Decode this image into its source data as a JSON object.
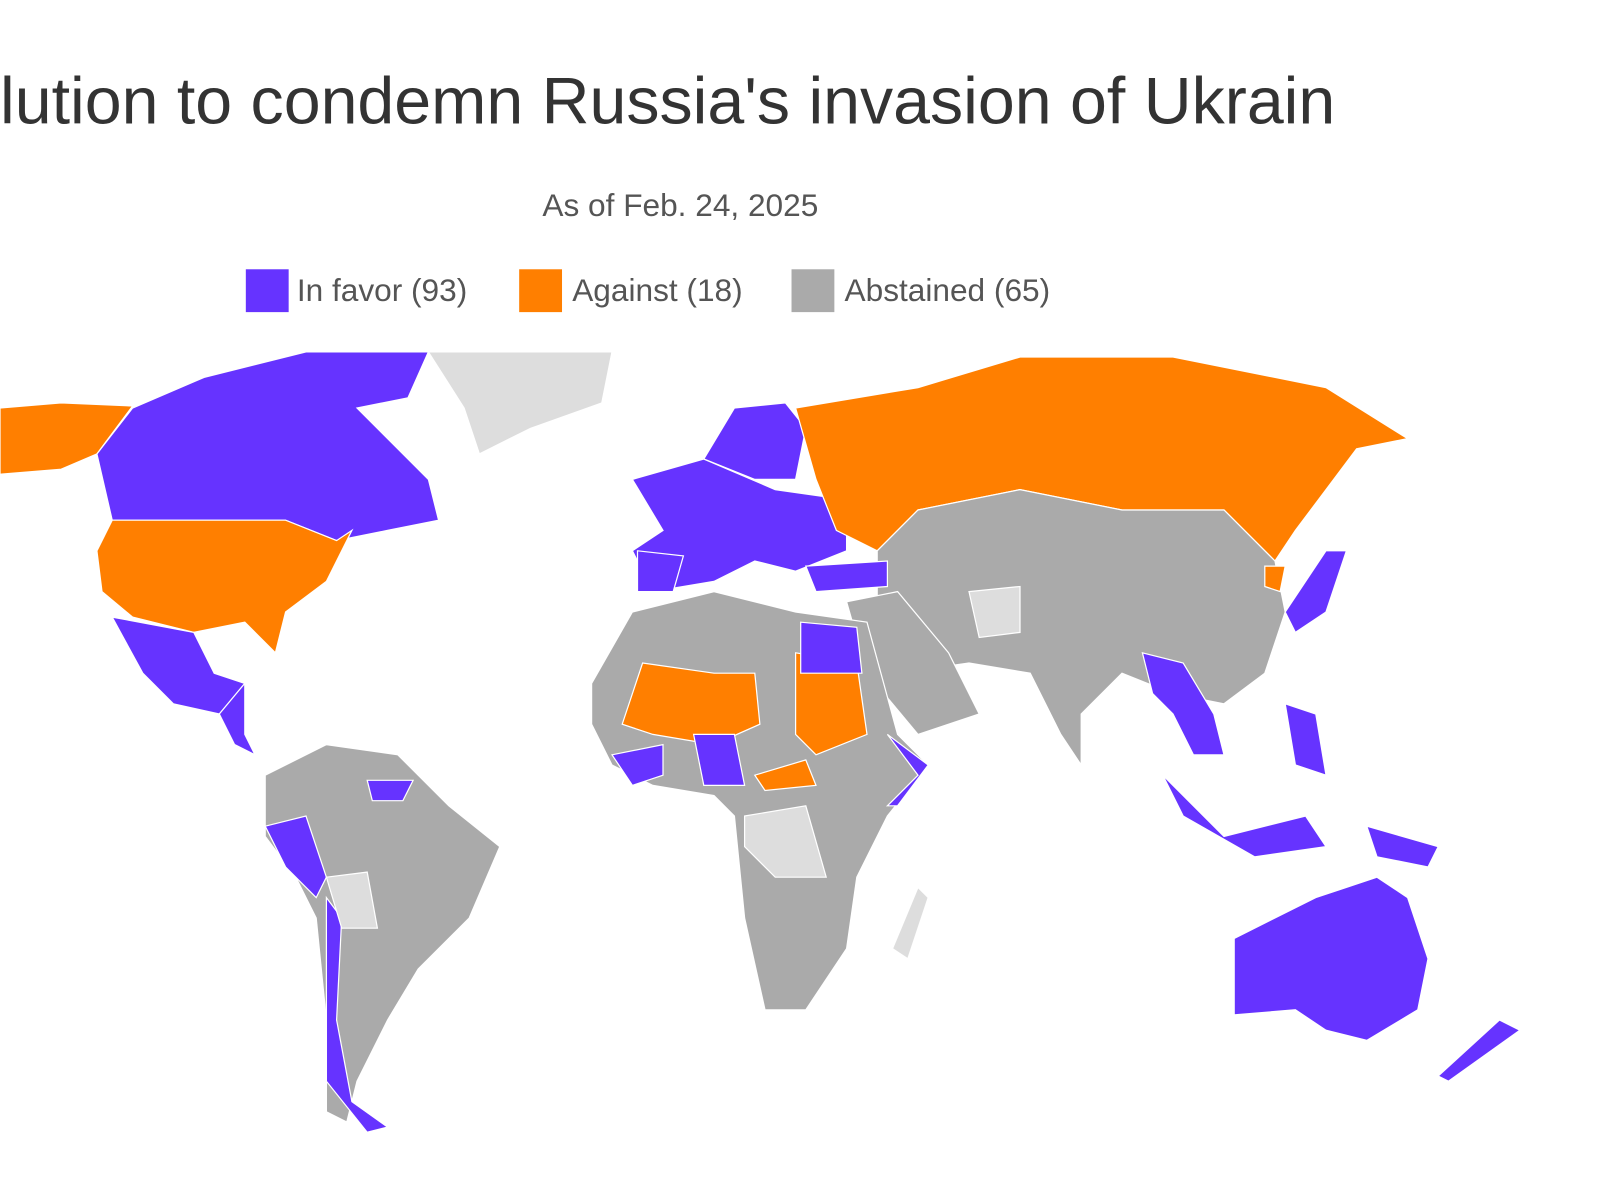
{
  "title": "lution to condemn Russia's invasion of Ukrain",
  "subtitle": "As of Feb. 24, 2025",
  "legend": [
    {
      "label": "In favor (93)",
      "color": "#6633ff"
    },
    {
      "label": "Against (18)",
      "color": "#ff7f00"
    },
    {
      "label": "Abstained (65)",
      "color": "#aaaaaa"
    }
  ]
}
